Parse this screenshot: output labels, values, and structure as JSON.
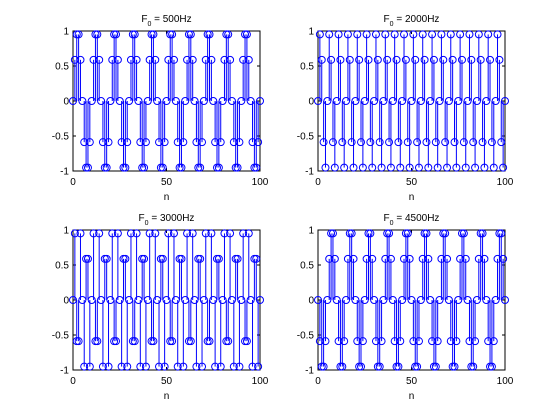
{
  "chart_data": [
    {
      "type": "stem",
      "title": "F_0 = 500Hz",
      "title_main": "F",
      "title_sub": "0",
      "title_rest": " = 500Hz",
      "xlabel": "n",
      "ylabel": "",
      "xlim": [
        0,
        100
      ],
      "ylim": [
        -1,
        1
      ],
      "xticks": [
        0,
        50,
        100
      ],
      "yticks": [
        -1,
        -0.5,
        0,
        0.5,
        1
      ],
      "x_start": 0,
      "x_end": 100,
      "values": [
        0,
        0.588,
        0.951,
        0.951,
        0.588,
        0,
        -0.588,
        -0.951,
        -0.951,
        -0.588,
        0,
        0.588,
        0.951,
        0.951,
        0.588,
        0,
        -0.588,
        -0.951,
        -0.951,
        -0.588,
        0,
        0.588,
        0.951,
        0.951,
        0.588,
        0,
        -0.588,
        -0.951,
        -0.951,
        -0.588,
        0,
        0.588,
        0.951,
        0.951,
        0.588,
        0,
        -0.588,
        -0.951,
        -0.951,
        -0.588,
        0,
        0.588,
        0.951,
        0.951,
        0.588,
        0,
        -0.588,
        -0.951,
        -0.951,
        -0.588,
        0,
        0.588,
        0.951,
        0.951,
        0.588,
        0,
        -0.588,
        -0.951,
        -0.951,
        -0.588,
        0,
        0.588,
        0.951,
        0.951,
        0.588,
        0,
        -0.588,
        -0.951,
        -0.951,
        -0.588,
        0,
        0.588,
        0.951,
        0.951,
        0.588,
        0,
        -0.588,
        -0.951,
        -0.951,
        -0.588,
        0,
        0.588,
        0.951,
        0.951,
        0.588,
        0,
        -0.588,
        -0.951,
        -0.951,
        -0.588,
        0,
        0.588,
        0.951,
        0.951,
        0.588,
        0,
        -0.588,
        -0.951,
        -0.951,
        -0.588,
        0
      ],
      "grid": false,
      "color": "#0000ff"
    },
    {
      "type": "stem",
      "title": "F_0 = 2000Hz",
      "title_main": "F",
      "title_sub": "0",
      "title_rest": " = 2000Hz",
      "xlabel": "n",
      "ylabel": "",
      "xlim": [
        0,
        100
      ],
      "ylim": [
        -1,
        1
      ],
      "xticks": [
        0,
        50,
        100
      ],
      "yticks": [
        -1,
        -0.5,
        0,
        0.5,
        1
      ],
      "x_start": 0,
      "x_end": 100,
      "values": [
        0,
        0.951,
        0.588,
        -0.588,
        -0.951,
        0,
        0.951,
        0.588,
        -0.588,
        -0.951,
        0,
        0.951,
        0.588,
        -0.588,
        -0.951,
        0,
        0.951,
        0.588,
        -0.588,
        -0.951,
        0,
        0.951,
        0.588,
        -0.588,
        -0.951,
        0,
        0.951,
        0.588,
        -0.588,
        -0.951,
        0,
        0.951,
        0.588,
        -0.588,
        -0.951,
        0,
        0.951,
        0.588,
        -0.588,
        -0.951,
        0,
        0.951,
        0.588,
        -0.588,
        -0.951,
        0,
        0.951,
        0.588,
        -0.588,
        -0.951,
        0,
        0.951,
        0.588,
        -0.588,
        -0.951,
        0,
        0.951,
        0.588,
        -0.588,
        -0.951,
        0,
        0.951,
        0.588,
        -0.588,
        -0.951,
        0,
        0.951,
        0.588,
        -0.588,
        -0.951,
        0,
        0.951,
        0.588,
        -0.588,
        -0.951,
        0,
        0.951,
        0.588,
        -0.588,
        -0.951,
        0,
        0.951,
        0.588,
        -0.588,
        -0.951,
        0,
        0.951,
        0.588,
        -0.588,
        -0.951,
        0,
        0.951,
        0.588,
        -0.588,
        -0.951,
        0,
        0.951,
        0.588,
        -0.588,
        -0.951,
        0
      ],
      "grid": false,
      "color": "#0000ff"
    },
    {
      "type": "stem",
      "title": "F_0 = 3000Hz",
      "title_main": "F",
      "title_sub": "0",
      "title_rest": " = 3000Hz",
      "xlabel": "n",
      "ylabel": "",
      "xlim": [
        0,
        100
      ],
      "ylim": [
        -1,
        1
      ],
      "xticks": [
        0,
        50,
        100
      ],
      "yticks": [
        -1,
        -0.5,
        0,
        0.5,
        1
      ],
      "x_start": 0,
      "x_end": 100,
      "values": [
        0,
        0.951,
        -0.588,
        -0.588,
        0.951,
        0,
        -0.951,
        0.588,
        0.588,
        -0.951,
        0,
        0.951,
        -0.588,
        -0.588,
        0.951,
        0,
        -0.951,
        0.588,
        0.588,
        -0.951,
        0,
        0.951,
        -0.588,
        -0.588,
        0.951,
        0,
        -0.951,
        0.588,
        0.588,
        -0.951,
        0,
        0.951,
        -0.588,
        -0.588,
        0.951,
        0,
        -0.951,
        0.588,
        0.588,
        -0.951,
        0,
        0.951,
        -0.588,
        -0.588,
        0.951,
        0,
        -0.951,
        0.588,
        0.588,
        -0.951,
        0,
        0.951,
        -0.588,
        -0.588,
        0.951,
        0,
        -0.951,
        0.588,
        0.588,
        -0.951,
        0,
        0.951,
        -0.588,
        -0.588,
        0.951,
        0,
        -0.951,
        0.588,
        0.588,
        -0.951,
        0,
        0.951,
        -0.588,
        -0.588,
        0.951,
        0,
        -0.951,
        0.588,
        0.588,
        -0.951,
        0,
        0.951,
        -0.588,
        -0.588,
        0.951,
        0,
        -0.951,
        0.588,
        0.588,
        -0.951,
        0,
        0.951,
        -0.588,
        -0.588,
        0.951,
        0,
        -0.951,
        0.588,
        0.588,
        -0.951,
        0
      ],
      "grid": false,
      "color": "#0000ff"
    },
    {
      "type": "stem",
      "title": "F_0 = 4500Hz",
      "title_main": "F",
      "title_sub": "0",
      "title_rest": " = 4500Hz",
      "xlabel": "n",
      "ylabel": "",
      "xlim": [
        0,
        100
      ],
      "ylim": [
        -1,
        1
      ],
      "xticks": [
        0,
        50,
        100
      ],
      "yticks": [
        -1,
        -0.5,
        0,
        0.5,
        1
      ],
      "x_start": 0,
      "x_end": 100,
      "values": [
        0,
        -0.588,
        -0.951,
        -0.951,
        -0.588,
        0,
        0.588,
        0.951,
        0.951,
        0.588,
        0,
        -0.588,
        -0.951,
        -0.951,
        -0.588,
        0,
        0.588,
        0.951,
        0.951,
        0.588,
        0,
        -0.588,
        -0.951,
        -0.951,
        -0.588,
        0,
        0.588,
        0.951,
        0.951,
        0.588,
        0,
        -0.588,
        -0.951,
        -0.951,
        -0.588,
        0,
        0.588,
        0.951,
        0.951,
        0.588,
        0,
        -0.588,
        -0.951,
        -0.951,
        -0.588,
        0,
        0.588,
        0.951,
        0.951,
        0.588,
        0,
        -0.588,
        -0.951,
        -0.951,
        -0.588,
        0,
        0.588,
        0.951,
        0.951,
        0.588,
        0,
        -0.588,
        -0.951,
        -0.951,
        -0.588,
        0,
        0.588,
        0.951,
        0.951,
        0.588,
        0,
        -0.588,
        -0.951,
        -0.951,
        -0.588,
        0,
        0.588,
        0.951,
        0.951,
        0.588,
        0,
        -0.588,
        -0.951,
        -0.951,
        -0.588,
        0,
        0.588,
        0.951,
        0.951,
        0.588,
        0,
        -0.588,
        -0.951,
        -0.951,
        -0.588,
        0,
        0.588,
        0.951,
        0.951,
        0.588,
        0
      ],
      "grid": false,
      "color": "#0000ff"
    }
  ]
}
